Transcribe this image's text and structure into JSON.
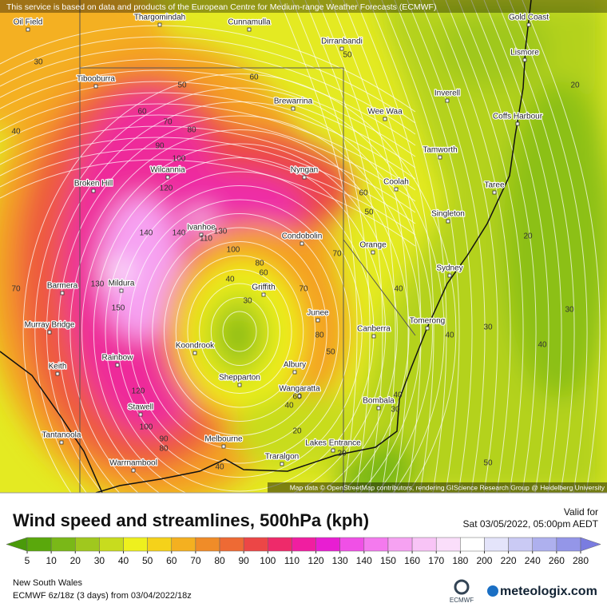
{
  "banner": "This service is based on data and products of the European Centre for Medium-range Weather Forecasts (ECMWF)",
  "cities": [
    "Oil Field",
    "Thargomindah",
    "Cunnamulla",
    "Dirranbandi",
    "Gold Coast",
    "Lismore",
    "Tibooburra",
    "Brewarrina",
    "Wee Waa",
    "Inverell",
    "Coffs Harbour",
    "Tamworth",
    "Wilcannia",
    "Nyngan",
    "Coolah",
    "Broken Hill",
    "Taree",
    "Singleton",
    "Ivanhoe",
    "Condobolin",
    "Orange",
    "Sydney",
    "Mildura",
    "Barmera",
    "Griffith",
    "Junee",
    "Murray Bridge",
    "Canberra",
    "Tomerong",
    "Koondrook",
    "Rainbow",
    "Keith",
    "Albury",
    "Shepparton",
    "Wangaratta",
    "Bombala",
    "Stawell",
    "Tantanoola",
    "Melbourne",
    "Lakes Entrance",
    "Traralgon",
    "Warrnambool"
  ],
  "contour_labels": [
    30,
    40,
    50,
    60,
    60,
    70,
    80,
    90,
    100,
    120,
    140,
    140,
    130,
    110,
    100,
    80,
    60,
    70,
    40,
    30,
    150,
    130,
    120,
    100,
    90,
    80,
    70,
    80,
    50,
    60,
    40,
    30,
    20,
    20,
    40,
    50,
    70,
    50,
    60,
    40,
    20,
    20,
    30,
    30,
    40,
    40,
    50,
    40
  ],
  "attribution": "Map data © OpenStreetMap contributors, rendering GIScience Research Group @ Heidelberg University",
  "legend": {
    "title": "Wind speed and streamlines, 500hPa (kph)",
    "valid_label": "Valid for",
    "valid_time": "Sat 03/05/2022, 05:00pm AEDT",
    "colorbar": {
      "ticks": [
        5,
        10,
        20,
        30,
        40,
        50,
        60,
        70,
        80,
        90,
        100,
        110,
        120,
        130,
        140,
        150,
        160,
        170,
        180,
        200,
        220,
        240,
        260,
        280
      ],
      "colors": [
        "#4a9a0a",
        "#5aa80c",
        "#7ab818",
        "#a0c81e",
        "#c8dc1e",
        "#eef01e",
        "#f5d21a",
        "#f4b020",
        "#f08c28",
        "#ee6a34",
        "#ec4646",
        "#ee2a6a",
        "#f01ea0",
        "#e81ed2",
        "#f050e6",
        "#f47aee",
        "#f6a2f2",
        "#f8c4f6",
        "#fadefa",
        "#ffffff",
        "#e4e4fa",
        "#cacaf4",
        "#aeb0ee",
        "#9496e8",
        "#7a7ce0"
      ]
    }
  },
  "footer": {
    "region": "New South Wales",
    "model": "ECMWF 6z/18z (3 days) from 03/04/2022/18z",
    "ecmwf_logo": "ECMWF",
    "brand": "meteologix.com"
  }
}
